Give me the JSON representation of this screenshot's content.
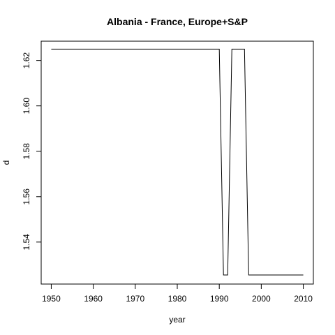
{
  "chart_data": {
    "type": "line",
    "title": "Albania - France, Europe+S&P",
    "xlabel": "year",
    "ylabel": "d",
    "xlim": [
      1947.6,
      2012.4
    ],
    "ylim": [
      1.5215,
      1.6285
    ],
    "x_ticks": [
      1950,
      1960,
      1970,
      1980,
      1990,
      2000,
      2010
    ],
    "y_ticks": [
      1.54,
      1.56,
      1.58,
      1.6,
      1.62
    ],
    "y_tick_labels": [
      "1.54",
      "1.56",
      "1.58",
      "1.60",
      "1.62"
    ],
    "grid": false,
    "series": [
      {
        "color": "#000000",
        "x": [
          1950,
          1951,
          1952,
          1953,
          1954,
          1955,
          1956,
          1957,
          1958,
          1959,
          1960,
          1961,
          1962,
          1963,
          1964,
          1965,
          1966,
          1967,
          1968,
          1969,
          1970,
          1971,
          1972,
          1973,
          1974,
          1975,
          1976,
          1977,
          1978,
          1979,
          1980,
          1981,
          1982,
          1983,
          1984,
          1985,
          1986,
          1987,
          1988,
          1989,
          1990,
          1991,
          1992,
          1993,
          1994,
          1995,
          1996,
          1997,
          1998,
          1999,
          2000,
          2001,
          2002,
          2003,
          2004,
          2005,
          2006,
          2007,
          2008,
          2009,
          2010
        ],
        "y": [
          1.625,
          1.625,
          1.625,
          1.625,
          1.625,
          1.625,
          1.625,
          1.625,
          1.625,
          1.625,
          1.625,
          1.625,
          1.625,
          1.625,
          1.625,
          1.625,
          1.625,
          1.625,
          1.625,
          1.625,
          1.625,
          1.625,
          1.625,
          1.625,
          1.625,
          1.625,
          1.625,
          1.625,
          1.625,
          1.625,
          1.625,
          1.625,
          1.625,
          1.625,
          1.625,
          1.625,
          1.625,
          1.625,
          1.625,
          1.625,
          1.625,
          1.5255,
          1.5255,
          1.625,
          1.625,
          1.625,
          1.625,
          1.5255,
          1.5255,
          1.5255,
          1.5255,
          1.5255,
          1.5255,
          1.5255,
          1.5255,
          1.5255,
          1.5255,
          1.5255,
          1.5255,
          1.5255,
          1.5255
        ]
      }
    ]
  }
}
